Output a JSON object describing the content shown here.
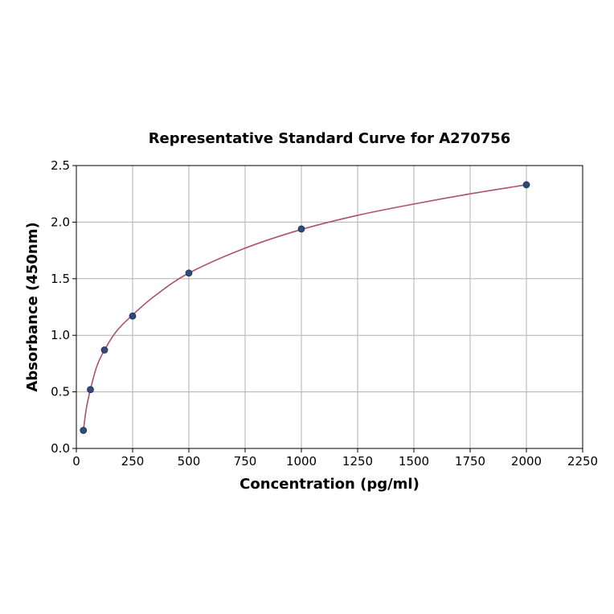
{
  "chart_data": {
    "type": "scatter",
    "title": "Representative Standard Curve for A270756",
    "xlabel": "Concentration (pg/ml)",
    "ylabel": "Absorbance (450nm)",
    "xlim": [
      0,
      2250
    ],
    "ylim": [
      0,
      2.5
    ],
    "xticks": [
      "0",
      "250",
      "500",
      "750",
      "1000",
      "1250",
      "1500",
      "1750",
      "2000",
      "2250"
    ],
    "yticks": [
      "0.0",
      "0.5",
      "1.0",
      "1.5",
      "2.0",
      "2.5"
    ],
    "grid": true,
    "series": [
      {
        "x": [
          31.25,
          62.5,
          125,
          250,
          500,
          1000,
          2000
        ],
        "y": [
          0.16,
          0.52,
          0.87,
          1.17,
          1.55,
          1.94,
          2.33
        ]
      }
    ],
    "fit_curve": {
      "x": [
        31.25,
        45,
        62.5,
        90,
        125,
        180,
        250,
        350,
        500,
        750,
        1000,
        1250,
        1500,
        1750,
        2000
      ],
      "y": [
        0.16,
        0.36,
        0.52,
        0.72,
        0.87,
        1.04,
        1.18,
        1.35,
        1.55,
        1.77,
        1.935,
        2.06,
        2.16,
        2.25,
        2.33
      ]
    },
    "colors": {
      "points": "#2f4b7c",
      "curve": "#b0506e"
    }
  }
}
